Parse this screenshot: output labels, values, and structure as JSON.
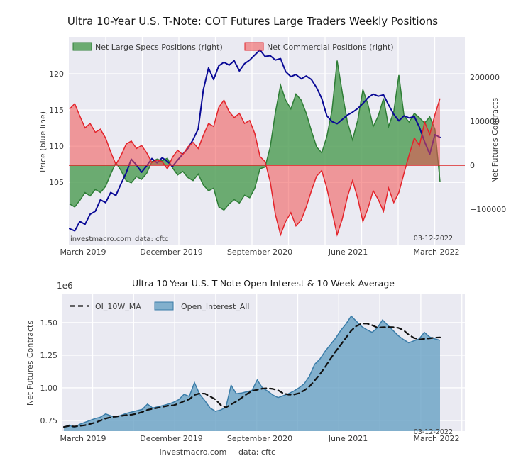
{
  "style": {
    "plot_background": "#eaeaf2",
    "grid_color": "#ffffff",
    "text_color": "#3c3c3c",
    "title_color": "#1a1a1a"
  },
  "chart_data": [
    {
      "type": "area",
      "title": "Ultra 10-Year U.S. T-Note: COT Futures Large Traders Weekly Positions",
      "x_tick_labels": [
        "March 2019",
        "December 2019",
        "September 2020",
        "June 2021",
        "March 2022"
      ],
      "x_range_months": [
        0,
        36
      ],
      "x_months_step": 0.5,
      "y_left": {
        "label": "Price (blue line)",
        "ticks": [
          105,
          110,
          115,
          120
        ],
        "lim": [
          96.4,
          125.1
        ]
      },
      "y_right": {
        "label": "Net Futures Contracts",
        "ticks": [
          -100000,
          0,
          100000,
          200000
        ],
        "lim": [
          -180600,
          291900
        ]
      },
      "zero_line": {
        "value": 0,
        "color": "#dd2626"
      },
      "annotations": {
        "source": "investmacro.com",
        "data_note": "data: cftc",
        "date": "03-12-2022"
      },
      "legend": [
        "Net Large Specs Positions (right)",
        "Net Commercial Positions (right)"
      ],
      "series": [
        {
          "name": "Net Large Specs Positions (right)",
          "axis": "right",
          "kind": "area",
          "fill": "#55a05a",
          "fill_opacity": 0.85,
          "line": "#2e7d36",
          "values": [
            -88000,
            -95000,
            -80000,
            -62000,
            -70000,
            -55000,
            -62000,
            -48000,
            -20000,
            6000,
            -12000,
            -35000,
            -40000,
            -26000,
            -32000,
            -18000,
            8000,
            14000,
            10000,
            16000,
            -6000,
            -22000,
            -14000,
            -28000,
            -35000,
            -20000,
            -45000,
            -58000,
            -52000,
            -95000,
            -102000,
            -88000,
            -78000,
            -86000,
            -68000,
            -74000,
            -52000,
            -8000,
            -4000,
            42000,
            120000,
            182000,
            148000,
            128000,
            162000,
            148000,
            118000,
            78000,
            42000,
            28000,
            65000,
            125000,
            238000,
            165000,
            98000,
            58000,
            102000,
            172000,
            138000,
            88000,
            112000,
            152000,
            88000,
            122000,
            205000,
            112000,
            98000,
            118000,
            108000,
            96000,
            110000,
            82000,
            -38000
          ]
        },
        {
          "name": "Net Commercial Positions (right)",
          "axis": "right",
          "kind": "area",
          "fill": "#f05050",
          "fill_opacity": 0.55,
          "line": "#e3242b",
          "values": [
            128000,
            140000,
            112000,
            85000,
            95000,
            75000,
            82000,
            62000,
            30000,
            2000,
            22000,
            48000,
            55000,
            38000,
            45000,
            28000,
            6000,
            12000,
            8000,
            -8000,
            18000,
            34000,
            24000,
            42000,
            52000,
            38000,
            68000,
            95000,
            88000,
            132000,
            148000,
            122000,
            108000,
            118000,
            95000,
            102000,
            72000,
            20000,
            8000,
            -38000,
            -112000,
            -158000,
            -128000,
            -108000,
            -138000,
            -125000,
            -95000,
            -58000,
            -25000,
            -12000,
            -52000,
            -105000,
            -158000,
            -122000,
            -72000,
            -35000,
            -75000,
            -128000,
            -98000,
            -58000,
            -78000,
            -105000,
            -52000,
            -85000,
            -62000,
            -18000,
            24000,
            62000,
            45000,
            98000,
            70000,
            115000,
            152000
          ]
        },
        {
          "name": "Price (blue line)",
          "axis": "left",
          "kind": "line",
          "line": "#0a0a96",
          "values": [
            98.6,
            98.3,
            99.6,
            99.2,
            100.6,
            101.0,
            102.6,
            102.2,
            103.6,
            103.2,
            104.8,
            106.3,
            108.2,
            107.4,
            106.4,
            107.3,
            108.3,
            107.7,
            108.4,
            107.9,
            107.2,
            108.1,
            108.9,
            109.7,
            110.9,
            112.4,
            117.8,
            120.8,
            119.2,
            121.1,
            121.6,
            121.2,
            121.8,
            120.4,
            121.4,
            121.9,
            122.6,
            123.3,
            122.4,
            122.5,
            121.9,
            122.1,
            120.3,
            119.6,
            119.9,
            119.3,
            119.7,
            119.2,
            118.1,
            116.6,
            114.2,
            113.4,
            113.1,
            113.7,
            114.3,
            114.7,
            115.2,
            115.9,
            116.7,
            117.2,
            116.9,
            117.1,
            115.7,
            114.4,
            113.5,
            114.2,
            113.9,
            114.1,
            112.6,
            110.6,
            108.9,
            111.6,
            111.2
          ]
        }
      ]
    },
    {
      "type": "area",
      "title": "Ultra 10-Year U.S. T-Note Open Interest & 10-Week Average",
      "x_tick_labels": [
        "March 2019",
        "December 2019",
        "September 2020",
        "June 2021",
        "March 2022"
      ],
      "x_range_months": [
        0,
        36
      ],
      "x_months_step": 0.5,
      "y_left": {
        "label": "Net Futures Contracts",
        "offset_label": "1e6",
        "ticks": [
          0.75,
          1.0,
          1.25,
          1.5
        ],
        "lim": [
          0.668,
          1.717
        ],
        "unit": "1e6 contracts"
      },
      "annotations": {
        "date": "03-12-2022"
      },
      "footer": {
        "source": "investmacro.com",
        "data_note": "data: cftc"
      },
      "legend": [
        "OI_10W_MA",
        "Open_Interest_All"
      ],
      "series": [
        {
          "name": "OI_10W_MA",
          "kind": "dashed-line",
          "line": "#111111",
          "derived": "10-week trailing moving average of Open_Interest_All"
        },
        {
          "name": "Open_Interest_All",
          "kind": "area",
          "fill": "#649fc3",
          "fill_opacity": 0.78,
          "line": "#3a7ca8",
          "values": [
            0.7,
            0.715,
            0.695,
            0.72,
            0.735,
            0.75,
            0.765,
            0.775,
            0.8,
            0.785,
            0.775,
            0.79,
            0.805,
            0.815,
            0.825,
            0.835,
            0.875,
            0.845,
            0.855,
            0.865,
            0.875,
            0.89,
            0.91,
            0.95,
            0.935,
            1.04,
            0.95,
            0.9,
            0.845,
            0.82,
            0.83,
            0.85,
            1.02,
            0.955,
            0.96,
            0.97,
            0.98,
            1.06,
            1.0,
            0.975,
            0.945,
            0.925,
            0.94,
            0.955,
            0.975,
            1.0,
            1.03,
            1.09,
            1.18,
            1.22,
            1.28,
            1.33,
            1.38,
            1.44,
            1.49,
            1.55,
            1.51,
            1.47,
            1.445,
            1.425,
            1.46,
            1.52,
            1.48,
            1.44,
            1.4,
            1.37,
            1.345,
            1.36,
            1.375,
            1.425,
            1.39,
            1.375,
            1.365
          ]
        }
      ]
    }
  ]
}
